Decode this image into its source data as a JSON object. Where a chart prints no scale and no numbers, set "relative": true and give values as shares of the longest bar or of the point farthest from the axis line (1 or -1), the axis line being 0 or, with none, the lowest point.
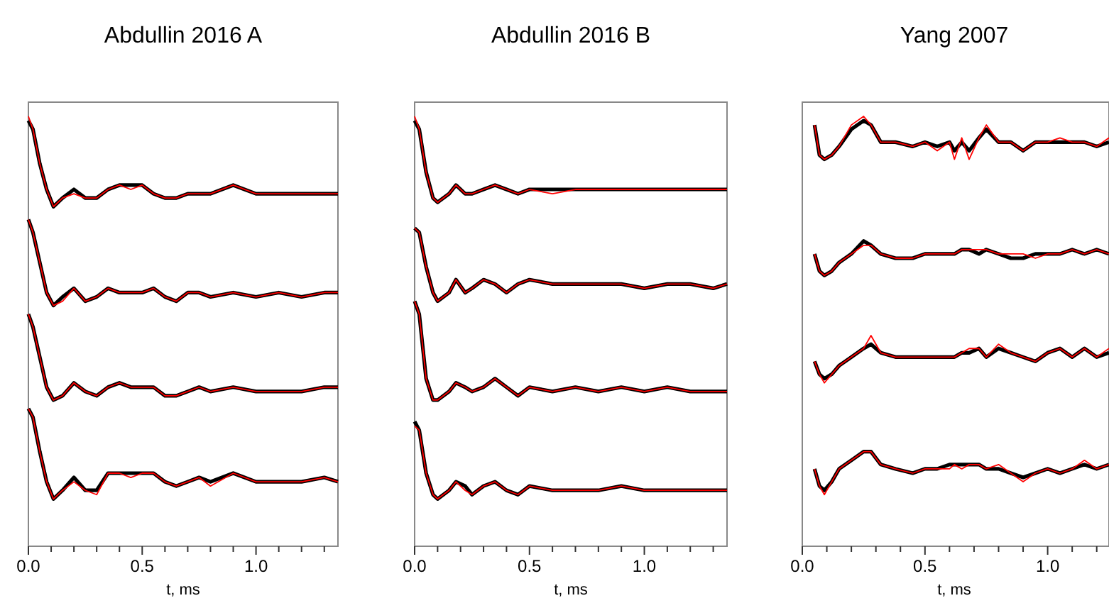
{
  "chart_data": [
    {
      "type": "line",
      "title": "Abdullin 2016 A",
      "xlabel": "t, ms",
      "relative": true,
      "tick_labels": "x",
      "xlim": [
        0,
        1.36
      ],
      "xticks": [
        {
          "value": 0,
          "label": "0.0"
        },
        {
          "value": 0.1,
          "label": null
        },
        {
          "value": 0.2,
          "label": null
        },
        {
          "value": 0.3,
          "label": null
        },
        {
          "value": 0.4,
          "label": null
        },
        {
          "value": 0.5,
          "label": "0.5"
        },
        {
          "value": 0.6,
          "label": null
        },
        {
          "value": 0.7,
          "label": null
        },
        {
          "value": 0.8,
          "label": null
        },
        {
          "value": 0.9,
          "label": null
        },
        {
          "value": 1,
          "label": "1.0"
        },
        {
          "value": 1.1,
          "label": null
        },
        {
          "value": 1.2,
          "label": null
        },
        {
          "value": 1.3,
          "label": null
        }
      ],
      "x": [
        0,
        0.02,
        0.05,
        0.08,
        0.11,
        0.15,
        0.2,
        0.25,
        0.3,
        0.35,
        0.4,
        0.45,
        0.5,
        0.55,
        0.6,
        0.65,
        0.7,
        0.75,
        0.8,
        0.9,
        1.0,
        1.1,
        1.2,
        1.3,
        1.36
      ],
      "series": [
        {
          "color": "#000000",
          "values": [
            0.99,
            0.97,
            0.89,
            0.83,
            0.79,
            0.81,
            0.83,
            0.81,
            0.81,
            0.83,
            0.84,
            0.84,
            0.84,
            0.82,
            0.81,
            0.81,
            0.82,
            0.82,
            0.82,
            0.84,
            0.82,
            0.82,
            0.82,
            0.82,
            0.82
          ]
        },
        {
          "color": "#000000",
          "values": [
            0.76,
            0.73,
            0.66,
            0.59,
            0.56,
            0.58,
            0.6,
            0.57,
            0.58,
            0.6,
            0.59,
            0.59,
            0.59,
            0.6,
            0.58,
            0.57,
            0.59,
            0.59,
            0.58,
            0.59,
            0.58,
            0.59,
            0.58,
            0.59,
            0.59
          ]
        },
        {
          "color": "#000000",
          "values": [
            0.54,
            0.51,
            0.44,
            0.37,
            0.34,
            0.35,
            0.38,
            0.36,
            0.35,
            0.37,
            0.38,
            0.37,
            0.37,
            0.37,
            0.35,
            0.35,
            0.36,
            0.37,
            0.36,
            0.37,
            0.36,
            0.36,
            0.36,
            0.37,
            0.37
          ]
        },
        {
          "color": "#000000",
          "values": [
            0.32,
            0.3,
            0.22,
            0.15,
            0.11,
            0.13,
            0.16,
            0.13,
            0.13,
            0.17,
            0.17,
            0.17,
            0.17,
            0.17,
            0.15,
            0.14,
            0.15,
            0.16,
            0.15,
            0.17,
            0.15,
            0.15,
            0.15,
            0.16,
            0.15
          ]
        },
        {
          "color": "#ff0000",
          "values": [
            1.0,
            0.97,
            0.89,
            0.83,
            0.79,
            0.81,
            0.82,
            0.81,
            0.81,
            0.83,
            0.84,
            0.83,
            0.84,
            0.82,
            0.81,
            0.81,
            0.82,
            0.82,
            0.82,
            0.84,
            0.82,
            0.82,
            0.82,
            0.82,
            0.82
          ]
        },
        {
          "color": "#ff0000",
          "values": [
            0.76,
            0.73,
            0.66,
            0.59,
            0.56,
            0.57,
            0.6,
            0.57,
            0.58,
            0.6,
            0.59,
            0.59,
            0.59,
            0.6,
            0.58,
            0.57,
            0.59,
            0.59,
            0.58,
            0.59,
            0.58,
            0.59,
            0.58,
            0.59,
            0.59
          ]
        },
        {
          "color": "#ff0000",
          "values": [
            0.54,
            0.51,
            0.44,
            0.37,
            0.34,
            0.35,
            0.38,
            0.36,
            0.35,
            0.37,
            0.38,
            0.37,
            0.37,
            0.37,
            0.35,
            0.35,
            0.36,
            0.37,
            0.36,
            0.37,
            0.36,
            0.36,
            0.36,
            0.37,
            0.37
          ]
        },
        {
          "color": "#ff0000",
          "values": [
            0.32,
            0.3,
            0.22,
            0.15,
            0.11,
            0.13,
            0.15,
            0.13,
            0.12,
            0.17,
            0.17,
            0.16,
            0.17,
            0.17,
            0.15,
            0.14,
            0.15,
            0.16,
            0.14,
            0.17,
            0.15,
            0.15,
            0.15,
            0.16,
            0.15
          ]
        }
      ]
    },
    {
      "type": "line",
      "title": "Abdullin 2016 B",
      "xlabel": "t, ms",
      "relative": true,
      "tick_labels": "x",
      "xlim": [
        0,
        1.36
      ],
      "xticks": [
        {
          "value": 0,
          "label": "0.0"
        },
        {
          "value": 0.1,
          "label": null
        },
        {
          "value": 0.2,
          "label": null
        },
        {
          "value": 0.3,
          "label": null
        },
        {
          "value": 0.4,
          "label": null
        },
        {
          "value": 0.5,
          "label": "0.5"
        },
        {
          "value": 0.6,
          "label": null
        },
        {
          "value": 0.7,
          "label": null
        },
        {
          "value": 0.8,
          "label": null
        },
        {
          "value": 0.9,
          "label": null
        },
        {
          "value": 1,
          "label": "1.0"
        },
        {
          "value": 1.1,
          "label": null
        },
        {
          "value": 1.2,
          "label": null
        },
        {
          "value": 1.3,
          "label": null
        }
      ],
      "x": [
        0,
        0.02,
        0.05,
        0.08,
        0.1,
        0.15,
        0.18,
        0.22,
        0.25,
        0.3,
        0.35,
        0.4,
        0.45,
        0.5,
        0.6,
        0.7,
        0.8,
        0.9,
        1.0,
        1.1,
        1.2,
        1.3,
        1.36
      ],
      "series": [
        {
          "color": "#000000",
          "values": [
            0.99,
            0.97,
            0.87,
            0.81,
            0.8,
            0.82,
            0.84,
            0.82,
            0.82,
            0.83,
            0.84,
            0.83,
            0.82,
            0.83,
            0.83,
            0.83,
            0.83,
            0.83,
            0.83,
            0.83,
            0.83,
            0.83,
            0.83
          ]
        },
        {
          "color": "#000000",
          "values": [
            0.74,
            0.73,
            0.65,
            0.59,
            0.57,
            0.59,
            0.62,
            0.59,
            0.6,
            0.62,
            0.61,
            0.59,
            0.61,
            0.62,
            0.61,
            0.61,
            0.61,
            0.61,
            0.6,
            0.61,
            0.61,
            0.6,
            0.61
          ]
        },
        {
          "color": "#000000",
          "values": [
            0.57,
            0.54,
            0.39,
            0.34,
            0.34,
            0.36,
            0.38,
            0.37,
            0.36,
            0.37,
            0.39,
            0.37,
            0.35,
            0.37,
            0.36,
            0.37,
            0.36,
            0.37,
            0.36,
            0.37,
            0.36,
            0.36,
            0.36
          ]
        },
        {
          "color": "#000000",
          "values": [
            0.29,
            0.27,
            0.17,
            0.12,
            0.11,
            0.13,
            0.15,
            0.14,
            0.12,
            0.14,
            0.15,
            0.13,
            0.12,
            0.14,
            0.13,
            0.13,
            0.13,
            0.14,
            0.13,
            0.13,
            0.13,
            0.13,
            0.13
          ]
        },
        {
          "color": "#ff0000",
          "values": [
            1.0,
            0.97,
            0.87,
            0.81,
            0.8,
            0.82,
            0.84,
            0.82,
            0.82,
            0.83,
            0.84,
            0.83,
            0.82,
            0.83,
            0.82,
            0.83,
            0.83,
            0.83,
            0.83,
            0.83,
            0.83,
            0.83,
            0.83
          ]
        },
        {
          "color": "#ff0000",
          "values": [
            0.74,
            0.73,
            0.65,
            0.59,
            0.57,
            0.59,
            0.62,
            0.59,
            0.6,
            0.62,
            0.61,
            0.59,
            0.61,
            0.62,
            0.61,
            0.61,
            0.61,
            0.61,
            0.6,
            0.61,
            0.61,
            0.6,
            0.61
          ]
        },
        {
          "color": "#ff0000",
          "values": [
            0.57,
            0.54,
            0.39,
            0.34,
            0.34,
            0.36,
            0.38,
            0.37,
            0.36,
            0.37,
            0.39,
            0.37,
            0.35,
            0.37,
            0.36,
            0.37,
            0.36,
            0.37,
            0.36,
            0.37,
            0.36,
            0.36,
            0.36
          ]
        },
        {
          "color": "#ff0000",
          "values": [
            0.28,
            0.27,
            0.17,
            0.12,
            0.11,
            0.13,
            0.15,
            0.13,
            0.12,
            0.14,
            0.15,
            0.13,
            0.12,
            0.14,
            0.13,
            0.13,
            0.13,
            0.14,
            0.13,
            0.13,
            0.13,
            0.13,
            0.13
          ]
        }
      ]
    },
    {
      "type": "line",
      "title": "Yang 2007",
      "xlabel": "t, ms",
      "relative": true,
      "tick_labels": "x",
      "xlim": [
        0,
        1.25
      ],
      "xticks": [
        {
          "value": 0,
          "label": "0.0"
        },
        {
          "value": 0.1,
          "label": null
        },
        {
          "value": 0.2,
          "label": null
        },
        {
          "value": 0.3,
          "label": null
        },
        {
          "value": 0.4,
          "label": null
        },
        {
          "value": 0.5,
          "label": "0.5"
        },
        {
          "value": 0.6,
          "label": null
        },
        {
          "value": 0.7,
          "label": null
        },
        {
          "value": 0.8,
          "label": null
        },
        {
          "value": 0.9,
          "label": null
        },
        {
          "value": 1,
          "label": "1.0"
        },
        {
          "value": 1.1,
          "label": null
        },
        {
          "value": 1.2,
          "label": null
        }
      ],
      "x": [
        0.05,
        0.07,
        0.09,
        0.12,
        0.15,
        0.2,
        0.25,
        0.28,
        0.32,
        0.38,
        0.45,
        0.5,
        0.55,
        0.6,
        0.62,
        0.65,
        0.68,
        0.72,
        0.75,
        0.8,
        0.85,
        0.9,
        0.95,
        1.0,
        1.05,
        1.1,
        1.15,
        1.2,
        1.25
      ],
      "series": [
        {
          "color": "#000000",
          "values": [
            0.98,
            0.91,
            0.9,
            0.91,
            0.93,
            0.97,
            0.99,
            0.98,
            0.94,
            0.94,
            0.93,
            0.94,
            0.93,
            0.94,
            0.92,
            0.94,
            0.92,
            0.95,
            0.97,
            0.94,
            0.94,
            0.92,
            0.94,
            0.94,
            0.94,
            0.94,
            0.94,
            0.93,
            0.94
          ]
        },
        {
          "color": "#000000",
          "values": [
            0.68,
            0.64,
            0.63,
            0.64,
            0.66,
            0.68,
            0.71,
            0.7,
            0.68,
            0.67,
            0.67,
            0.68,
            0.68,
            0.68,
            0.68,
            0.69,
            0.69,
            0.68,
            0.69,
            0.68,
            0.67,
            0.67,
            0.68,
            0.68,
            0.68,
            0.69,
            0.68,
            0.69,
            0.68
          ]
        },
        {
          "color": "#000000",
          "values": [
            0.43,
            0.4,
            0.39,
            0.4,
            0.42,
            0.44,
            0.46,
            0.47,
            0.45,
            0.44,
            0.44,
            0.44,
            0.44,
            0.44,
            0.44,
            0.45,
            0.45,
            0.46,
            0.44,
            0.46,
            0.45,
            0.44,
            0.43,
            0.45,
            0.46,
            0.44,
            0.46,
            0.44,
            0.45
          ]
        },
        {
          "color": "#000000",
          "values": [
            0.18,
            0.14,
            0.13,
            0.15,
            0.18,
            0.2,
            0.22,
            0.22,
            0.19,
            0.18,
            0.17,
            0.18,
            0.18,
            0.19,
            0.19,
            0.19,
            0.19,
            0.19,
            0.18,
            0.18,
            0.17,
            0.16,
            0.17,
            0.18,
            0.17,
            0.18,
            0.19,
            0.18,
            0.19
          ]
        },
        {
          "color": "#ff0000",
          "values": [
            0.98,
            0.91,
            0.9,
            0.91,
            0.93,
            0.98,
            1.0,
            0.98,
            0.94,
            0.94,
            0.93,
            0.94,
            0.92,
            0.94,
            0.9,
            0.95,
            0.9,
            0.95,
            0.98,
            0.94,
            0.94,
            0.92,
            0.94,
            0.94,
            0.95,
            0.94,
            0.94,
            0.93,
            0.95
          ]
        },
        {
          "color": "#ff0000",
          "values": [
            0.68,
            0.64,
            0.63,
            0.64,
            0.66,
            0.68,
            0.7,
            0.7,
            0.68,
            0.67,
            0.67,
            0.68,
            0.68,
            0.68,
            0.68,
            0.69,
            0.69,
            0.69,
            0.69,
            0.68,
            0.68,
            0.68,
            0.67,
            0.68,
            0.68,
            0.69,
            0.68,
            0.69,
            0.68
          ]
        },
        {
          "color": "#ff0000",
          "values": [
            0.43,
            0.4,
            0.38,
            0.4,
            0.42,
            0.44,
            0.46,
            0.49,
            0.45,
            0.44,
            0.44,
            0.44,
            0.44,
            0.44,
            0.44,
            0.45,
            0.46,
            0.46,
            0.44,
            0.47,
            0.45,
            0.44,
            0.43,
            0.45,
            0.46,
            0.44,
            0.46,
            0.44,
            0.46
          ]
        },
        {
          "color": "#ff0000",
          "values": [
            0.18,
            0.14,
            0.12,
            0.15,
            0.18,
            0.2,
            0.22,
            0.22,
            0.19,
            0.18,
            0.17,
            0.18,
            0.18,
            0.18,
            0.19,
            0.18,
            0.19,
            0.19,
            0.18,
            0.19,
            0.17,
            0.15,
            0.17,
            0.18,
            0.17,
            0.18,
            0.2,
            0.18,
            0.19
          ]
        }
      ]
    }
  ]
}
